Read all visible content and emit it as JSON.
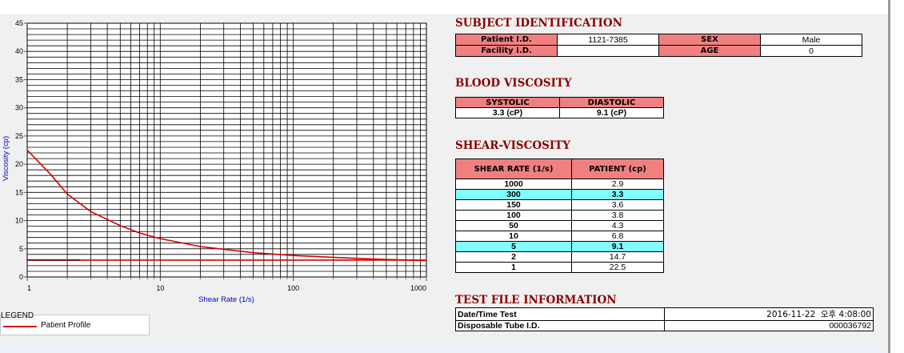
{
  "chart_data": {
    "type": "line",
    "x_scale": "log",
    "xlim": [
      1,
      1000
    ],
    "ylim": [
      0,
      45
    ],
    "x_ticks": [
      "1",
      "10",
      "100",
      "1000"
    ],
    "y_ticks": [
      "0",
      "5",
      "10",
      "15",
      "20",
      "25",
      "30",
      "35",
      "40",
      "45"
    ],
    "xlabel": "Shear Rate (1/s)",
    "ylabel": "Viscosity (cp)",
    "grid": true,
    "series": [
      {
        "name": "Patient Profile",
        "color": "#d40000",
        "x": [
          1,
          1.5,
          2,
          3,
          5,
          7,
          10,
          20,
          50,
          100,
          150,
          300,
          500,
          1000
        ],
        "y": [
          22.5,
          18.2,
          14.7,
          11.6,
          9.1,
          7.8,
          6.8,
          5.4,
          4.3,
          3.8,
          3.6,
          3.3,
          3.1,
          2.9
        ]
      },
      {
        "name": "",
        "color": "#d40000",
        "x": [
          1,
          1000
        ],
        "y": [
          3.0,
          3.0
        ]
      }
    ],
    "legend": {
      "title": "LEGEND",
      "entries": [
        "Patient Profile"
      ],
      "position": "bottom-left"
    }
  },
  "subject": {
    "title": "SUBJECT IDENTIFICATION",
    "patient_id_label": "Patient I.D.",
    "patient_id_value": "1121-7385",
    "sex_label": "SEX",
    "sex_value": "Male",
    "facility_id_label": "Facility I.D.",
    "facility_id_value": "",
    "age_label": "AGE",
    "age_value": "0"
  },
  "blood": {
    "title": "BLOOD VISCOSITY",
    "systolic_label": "SYSTOLIC",
    "diastolic_label": "DIASTOLIC",
    "systolic_value": "3.3 (cP)",
    "diastolic_value": "9.1 (cP)"
  },
  "shear": {
    "title": "SHEAR-VISCOSITY",
    "col_rate": "SHEAR RATE (1/s)",
    "col_patient": "PATIENT (cp)",
    "rows": [
      {
        "rate": "1000",
        "value": "2.9"
      },
      {
        "rate": "300",
        "value": "3.3"
      },
      {
        "rate": "150",
        "value": "3.6"
      },
      {
        "rate": "100",
        "value": "3.8"
      },
      {
        "rate": "50",
        "value": "4.3"
      },
      {
        "rate": "10",
        "value": "6.8"
      },
      {
        "rate": "5",
        "value": "9.1"
      },
      {
        "rate": "2",
        "value": "14.7"
      },
      {
        "rate": "1",
        "value": "22.5"
      }
    ]
  },
  "testfile": {
    "title": "TEST FILE INFORMATION",
    "datetime_label": "Date/Time Test",
    "datetime_value": "2016-11-22  오후 4:08:00",
    "tube_label": "Disposable Tube I.D.",
    "tube_value": "000036792"
  },
  "colors": {
    "header_pink": "#f08080",
    "highlight_cyan": "#80ffff",
    "section_title": "#8b0000",
    "curve_red": "#d40000",
    "axis_label_blue": "#0000cc"
  }
}
